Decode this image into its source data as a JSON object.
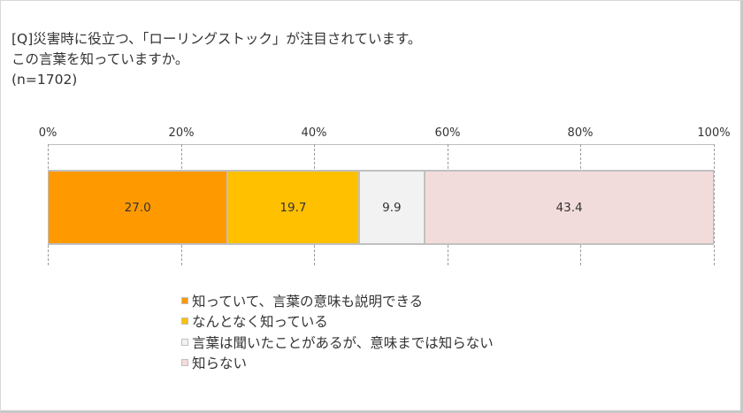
{
  "title": {
    "line1": "[Q]災害時に役立つ、「ローリングストック」が注目されています。",
    "line2": "この言葉を知っていますか。",
    "line3": "(n=1702)"
  },
  "axis": {
    "ticks": [
      "0%",
      "20%",
      "40%",
      "60%",
      "80%",
      "100%"
    ]
  },
  "chart_data": {
    "type": "bar",
    "orientation": "horizontal",
    "stacked": true,
    "title": "[Q]災害時に役立つ、「ローリングストック」が注目されています。この言葉を知っていますか。(n=1702)",
    "xlabel": "",
    "ylabel": "",
    "xlim": [
      0,
      100
    ],
    "x_ticks": [
      "0%",
      "20%",
      "40%",
      "60%",
      "80%",
      "100%"
    ],
    "grid": "dashed vertical",
    "legend_position": "bottom",
    "categories": [
      ""
    ],
    "series": [
      {
        "name": "知っていて、言葉の意味も説明できる",
        "values": [
          27.0
        ],
        "color": "#FF9900"
      },
      {
        "name": "なんとなく知っている",
        "values": [
          19.7
        ],
        "color": "#FFC000"
      },
      {
        "name": "言葉は聞いたことがあるが、意味までは知らない",
        "values": [
          9.9
        ],
        "color": "#F2F2F2"
      },
      {
        "name": "知らない",
        "values": [
          43.4
        ],
        "color": "#F2DCDB"
      }
    ]
  },
  "segments": [
    {
      "label": "27.0",
      "value": 27.0,
      "color": "#FF9900"
    },
    {
      "label": "19.7",
      "value": 19.7,
      "color": "#FFC000"
    },
    {
      "label": "9.9",
      "value": 9.9,
      "color": "#F2F2F2"
    },
    {
      "label": "43.4",
      "value": 43.4,
      "color": "#F2DCDB"
    }
  ],
  "legend": [
    {
      "label": "知っていて、言葉の意味も説明できる",
      "color": "#FF9900"
    },
    {
      "label": "なんとなく知っている",
      "color": "#FFC000"
    },
    {
      "label": "言葉は聞いたことがあるが、意味までは知らない",
      "color": "#F2F2F2"
    },
    {
      "label": "知らない",
      "color": "#F2DCDB"
    }
  ]
}
